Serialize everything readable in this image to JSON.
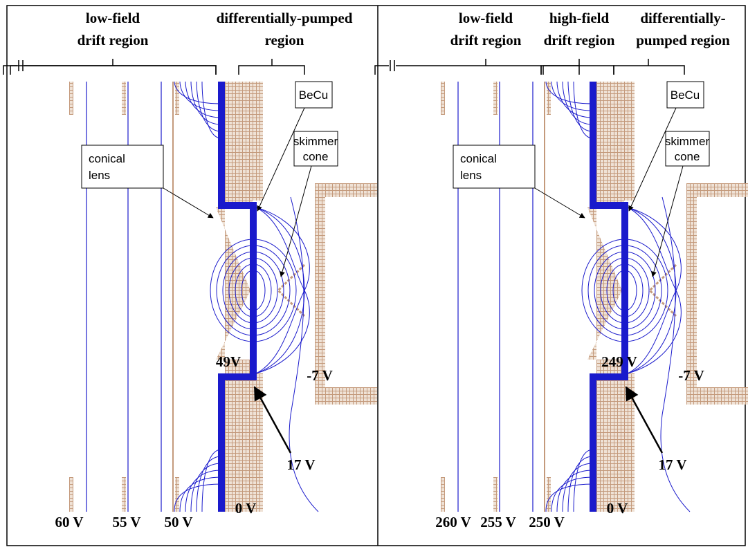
{
  "panels": [
    {
      "regions": [
        {
          "lines": [
            "low-field",
            "drift region"
          ]
        },
        {
          "lines": [
            "differentially-pumped",
            "region"
          ]
        }
      ],
      "callouts": {
        "becu": "BeCu",
        "conical_lens": [
          "conical",
          "lens"
        ],
        "skimmer_cone": [
          "skimmer",
          "cone"
        ]
      },
      "voltages": {
        "bottom": [
          "60 V",
          "55 V",
          "50 V"
        ],
        "lens": "49V",
        "skimmer": "-7 V",
        "becu": "17 V",
        "ground": "0 V"
      }
    },
    {
      "regions": [
        {
          "lines": [
            "low-field",
            "drift region"
          ]
        },
        {
          "lines": [
            "high-field",
            "drift region"
          ]
        },
        {
          "lines": [
            "differentially-",
            "pumped region"
          ]
        }
      ],
      "callouts": {
        "becu": "BeCu",
        "conical_lens": [
          "conical",
          "lens"
        ],
        "skimmer_cone": [
          "skimmer",
          "cone"
        ]
      },
      "voltages": {
        "bottom": [
          "260 V",
          "255 V",
          "250 V"
        ],
        "lens": "249 V",
        "skimmer": "-7 V",
        "becu": "17 V",
        "ground": "0 V"
      }
    }
  ]
}
